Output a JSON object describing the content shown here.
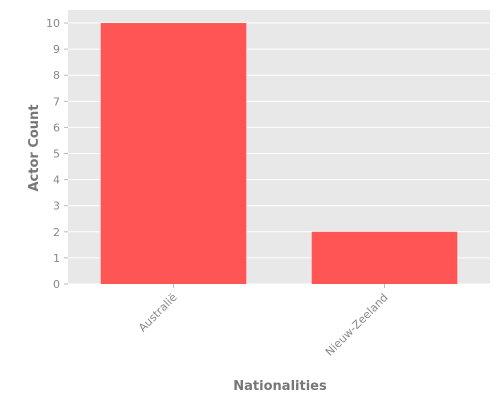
{
  "chart_data": {
    "type": "bar",
    "categories": [
      "Australië",
      "Nieuw-Zeeland"
    ],
    "values": [
      10,
      2
    ],
    "title": "",
    "xlabel": "Nationalities",
    "ylabel": "Actor Count",
    "ylim": [
      0,
      10.5
    ],
    "yticks": [
      0,
      1,
      2,
      3,
      4,
      5,
      6,
      7,
      8,
      9,
      10
    ],
    "grid": true,
    "legend": "none",
    "colors": {
      "bar": "#ff5555",
      "plot_background": "#e8e8e8",
      "grid": "#ffffff"
    }
  }
}
